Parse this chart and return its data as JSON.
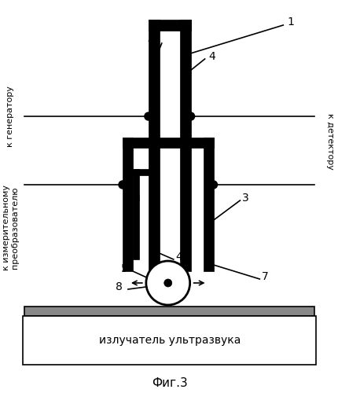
{
  "title": "Фиг.3",
  "background_color": "#ffffff",
  "fig_width": 4.3,
  "fig_height": 5.0,
  "labels": {
    "left_top": "к генератору",
    "left_bottom": "к измерительному\nпреобразователю",
    "right_top": "к детектору",
    "bottom": "излучатель ультразвука"
  }
}
